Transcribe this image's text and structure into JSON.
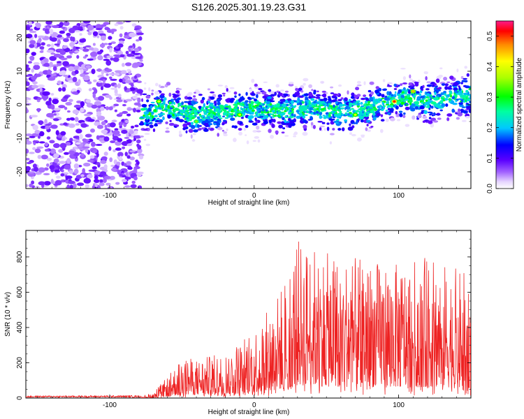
{
  "title": "S126.2025.301.19.23.G31",
  "chart_data": [
    {
      "type": "heatmap",
      "xlabel": "Height of straight line (km)",
      "ylabel": "Frequency (Hz)",
      "xlim": [
        -158,
        150
      ],
      "ylim": [
        -25,
        25
      ],
      "xticks": [
        -100,
        0,
        100
      ],
      "xtick_labels": [
        "-100",
        "0",
        "100"
      ],
      "yticks": [
        -20,
        -10,
        0,
        10,
        20
      ],
      "ytick_labels": [
        "-20",
        "-10",
        "0",
        "10",
        "20"
      ],
      "noise_region_x": [
        -158,
        -78
      ],
      "signal_track": {
        "x": [
          -78,
          -60,
          -40,
          -20,
          0,
          20,
          40,
          60,
          80,
          100,
          120,
          150
        ],
        "frequency": [
          -3,
          -1,
          -3,
          -2,
          -1,
          -2,
          -1,
          -2,
          -1,
          2,
          1,
          3
        ]
      },
      "peaks": [
        {
          "x": -66,
          "frequency": 1,
          "amplitude": 0.4
        },
        {
          "x": -40,
          "frequency": -5,
          "amplitude": 0.35
        },
        {
          "x": -10,
          "frequency": -3,
          "amplitude": 0.4
        },
        {
          "x": 70,
          "frequency": -3,
          "amplitude": 0.4
        },
        {
          "x": 97,
          "frequency": 1,
          "amplitude": 0.52
        },
        {
          "x": 110,
          "frequency": 4,
          "amplitude": 0.45
        }
      ],
      "colorbar": {
        "label": "Normalized spectral amplitude",
        "range": [
          0,
          0.55
        ],
        "ticks": [
          0.0,
          0.1,
          0.2,
          0.3,
          0.4,
          0.5
        ],
        "tick_labels": [
          "0.0",
          "0.1",
          "0.2",
          "0.3",
          "0.4",
          "0.5"
        ]
      },
      "colors": {
        "low": "#ffffff",
        "mid": "#6a00ff",
        "high": "#ff0000"
      }
    },
    {
      "type": "line",
      "xlabel": "Height of straight line (km)",
      "ylabel": "SNR (10 * v/v)",
      "xlim": [
        -158,
        150
      ],
      "ylim": [
        0,
        950
      ],
      "xticks": [
        -100,
        0,
        100
      ],
      "xtick_labels": [
        "-100",
        "0",
        "100"
      ],
      "yticks": [
        0,
        200,
        400,
        600,
        800
      ],
      "ytick_labels": [
        "0",
        "200",
        "400",
        "600",
        "800"
      ],
      "series": [
        {
          "name": "SNR",
          "color": "#ee2222",
          "envelope_x": [
            -158,
            -78,
            -70,
            -60,
            -50,
            -40,
            -20,
            -10,
            0,
            10,
            20,
            30,
            50,
            80,
            100,
            120,
            150
          ],
          "envelope_y": [
            10,
            12,
            30,
            120,
            230,
            220,
            260,
            330,
            400,
            500,
            650,
            900,
            820,
            780,
            760,
            800,
            700
          ]
        }
      ]
    }
  ]
}
